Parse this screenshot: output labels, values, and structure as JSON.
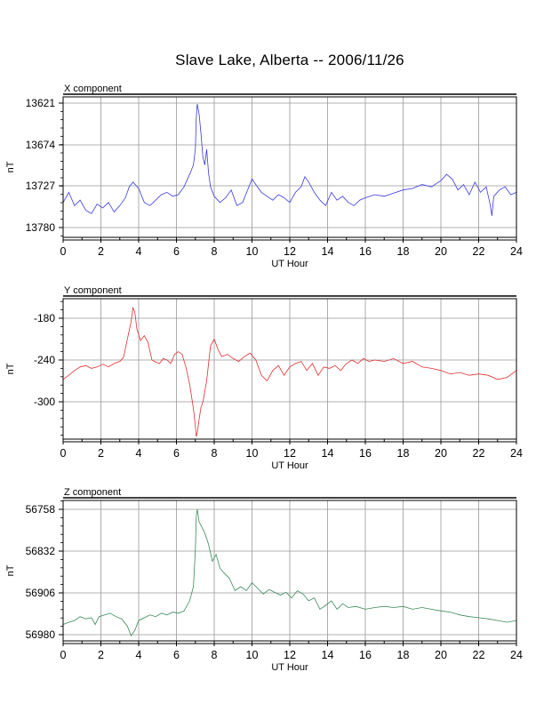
{
  "page": {
    "title": "Slave Lake, Alberta -- 2006/11/26"
  },
  "chart_data": [
    {
      "type": "line",
      "title": "X component",
      "xlabel": "UT Hour",
      "ylabel": "nT",
      "xlim": [
        0,
        24
      ],
      "ylim": [
        13610,
        13785
      ],
      "xticks": [
        0,
        2,
        4,
        6,
        8,
        10,
        12,
        14,
        16,
        18,
        20,
        22,
        24
      ],
      "yticks": [
        13621,
        13674,
        13727,
        13780
      ],
      "grid": true,
      "color": "#3a3ae0",
      "series": [
        {
          "x": [
            0,
            0.3,
            0.6,
            0.9,
            1.2,
            1.5,
            1.8,
            2.1,
            2.4,
            2.7,
            3.0,
            3.3,
            3.5,
            3.7,
            4.0,
            4.3,
            4.6,
            4.9,
            5.2,
            5.5,
            5.8,
            6.1,
            6.4,
            6.7,
            6.9,
            7.0,
            7.05,
            7.1,
            7.2,
            7.3,
            7.4,
            7.5,
            7.6,
            7.7,
            7.8,
            8.0,
            8.3,
            8.6,
            8.9,
            9.2,
            9.5,
            9.8,
            10.0,
            10.2,
            10.5,
            10.8,
            11.1,
            11.4,
            11.7,
            12.0,
            12.3,
            12.6,
            12.8,
            13.0,
            13.3,
            13.6,
            13.9,
            14.2,
            14.5,
            14.8,
            15.1,
            15.4,
            15.7,
            16.0,
            16.5,
            17.0,
            17.5,
            18.0,
            18.5,
            19.0,
            19.5,
            20.0,
            20.3,
            20.6,
            20.9,
            21.2,
            21.5,
            21.8,
            22.1,
            22.4,
            22.6,
            22.7,
            22.8,
            23.1,
            23.4,
            23.7,
            24.0
          ],
          "y": [
            13748,
            13735,
            13752,
            13745,
            13758,
            13762,
            13750,
            13755,
            13748,
            13760,
            13752,
            13742,
            13728,
            13722,
            13730,
            13748,
            13752,
            13745,
            13738,
            13735,
            13740,
            13738,
            13728,
            13712,
            13700,
            13680,
            13640,
            13622,
            13635,
            13660,
            13690,
            13700,
            13680,
            13710,
            13728,
            13740,
            13748,
            13742,
            13732,
            13752,
            13748,
            13730,
            13718,
            13725,
            13735,
            13740,
            13745,
            13738,
            13742,
            13748,
            13735,
            13728,
            13715,
            13722,
            13735,
            13745,
            13752,
            13735,
            13745,
            13740,
            13748,
            13752,
            13745,
            13742,
            13738,
            13740,
            13736,
            13732,
            13730,
            13725,
            13728,
            13720,
            13712,
            13718,
            13732,
            13725,
            13738,
            13722,
            13735,
            13728,
            13750,
            13765,
            13740,
            13732,
            13728,
            13738,
            13735
          ]
        }
      ]
    },
    {
      "type": "line",
      "title": "Y component",
      "xlabel": "UT Hour",
      "ylabel": "nT",
      "xlim": [
        0,
        24
      ],
      "ylim": [
        -360,
        -150
      ],
      "xticks": [
        0,
        2,
        4,
        6,
        8,
        10,
        12,
        14,
        16,
        18,
        20,
        22,
        24
      ],
      "yticks": [
        -180,
        -240,
        -300
      ],
      "grid": true,
      "color": "#e03030",
      "series": [
        {
          "x": [
            0,
            0.3,
            0.6,
            0.9,
            1.2,
            1.5,
            1.8,
            2.1,
            2.4,
            2.7,
            3.0,
            3.2,
            3.4,
            3.6,
            3.7,
            3.8,
            3.9,
            4.1,
            4.3,
            4.5,
            4.7,
            4.9,
            5.1,
            5.3,
            5.5,
            5.7,
            5.9,
            6.1,
            6.3,
            6.5,
            6.7,
            6.9,
            7.0,
            7.05,
            7.1,
            7.2,
            7.3,
            7.4,
            7.6,
            7.8,
            8.0,
            8.2,
            8.4,
            8.7,
            9.0,
            9.3,
            9.6,
            9.9,
            10.2,
            10.5,
            10.8,
            11.1,
            11.4,
            11.7,
            12.0,
            12.3,
            12.6,
            12.9,
            13.2,
            13.5,
            13.8,
            14.1,
            14.4,
            14.7,
            15.0,
            15.3,
            15.6,
            15.9,
            16.2,
            16.5,
            17.0,
            17.5,
            18.0,
            18.5,
            19.0,
            19.5,
            20.0,
            20.5,
            21.0,
            21.5,
            22.0,
            22.5,
            23.0,
            23.5,
            24.0
          ],
          "y": [
            -268,
            -262,
            -255,
            -250,
            -248,
            -252,
            -250,
            -246,
            -250,
            -245,
            -242,
            -236,
            -210,
            -185,
            -165,
            -172,
            -195,
            -212,
            -205,
            -215,
            -240,
            -243,
            -245,
            -238,
            -240,
            -245,
            -232,
            -228,
            -232,
            -250,
            -275,
            -310,
            -335,
            -350,
            -345,
            -325,
            -308,
            -300,
            -270,
            -220,
            -210,
            -225,
            -235,
            -232,
            -238,
            -242,
            -235,
            -230,
            -240,
            -262,
            -270,
            -255,
            -248,
            -262,
            -250,
            -245,
            -242,
            -255,
            -245,
            -262,
            -250,
            -252,
            -248,
            -255,
            -245,
            -240,
            -245,
            -238,
            -242,
            -240,
            -242,
            -238,
            -245,
            -242,
            -250,
            -252,
            -255,
            -260,
            -258,
            -262,
            -260,
            -262,
            -268,
            -265,
            -255
          ]
        }
      ]
    },
    {
      "type": "line",
      "title": "Z component",
      "xlabel": "UT Hour",
      "ylabel": "nT",
      "xlim": [
        0,
        24
      ],
      "ylim": [
        56750,
        56990
      ],
      "xticks": [
        0,
        2,
        4,
        6,
        8,
        10,
        12,
        14,
        16,
        18,
        20,
        22,
        24
      ],
      "yticks": [
        56758,
        56832,
        56906,
        56980
      ],
      "grid": true,
      "color": "#3a8a5a",
      "series": [
        {
          "x": [
            0,
            0.3,
            0.6,
            0.9,
            1.2,
            1.5,
            1.7,
            1.9,
            2.2,
            2.5,
            2.8,
            3.1,
            3.4,
            3.6,
            3.8,
            4.0,
            4.3,
            4.6,
            4.9,
            5.2,
            5.5,
            5.8,
            6.1,
            6.4,
            6.7,
            6.9,
            7.0,
            7.05,
            7.1,
            7.2,
            7.35,
            7.5,
            7.7,
            7.9,
            8.1,
            8.3,
            8.5,
            8.8,
            9.1,
            9.4,
            9.7,
            10.0,
            10.3,
            10.6,
            10.9,
            11.2,
            11.5,
            11.8,
            12.1,
            12.4,
            12.7,
            13.0,
            13.3,
            13.6,
            13.9,
            14.2,
            14.5,
            14.8,
            15.1,
            15.5,
            16.0,
            16.5,
            17.0,
            17.5,
            18.0,
            18.5,
            19.0,
            19.5,
            20.0,
            20.5,
            21.0,
            21.5,
            22.0,
            22.5,
            23.0,
            23.5,
            24.0
          ],
          "y": [
            56962,
            56958,
            56955,
            56948,
            56952,
            56950,
            56962,
            56948,
            56945,
            56942,
            56948,
            56952,
            56965,
            56982,
            56972,
            56955,
            56950,
            56945,
            56948,
            56942,
            56945,
            56940,
            56942,
            56938,
            56920,
            56895,
            56830,
            56770,
            56758,
            56780,
            56790,
            56800,
            56820,
            56850,
            56838,
            56862,
            56870,
            56880,
            56902,
            56895,
            56902,
            56888,
            56898,
            56908,
            56900,
            56905,
            56910,
            56905,
            56915,
            56902,
            56908,
            56920,
            56915,
            56935,
            56928,
            56920,
            56935,
            56925,
            56932,
            56930,
            56935,
            56932,
            56930,
            56932,
            56930,
            56935,
            56932,
            56935,
            56938,
            56940,
            56945,
            56948,
            56950,
            56952,
            56955,
            56958,
            56955
          ]
        }
      ]
    }
  ]
}
